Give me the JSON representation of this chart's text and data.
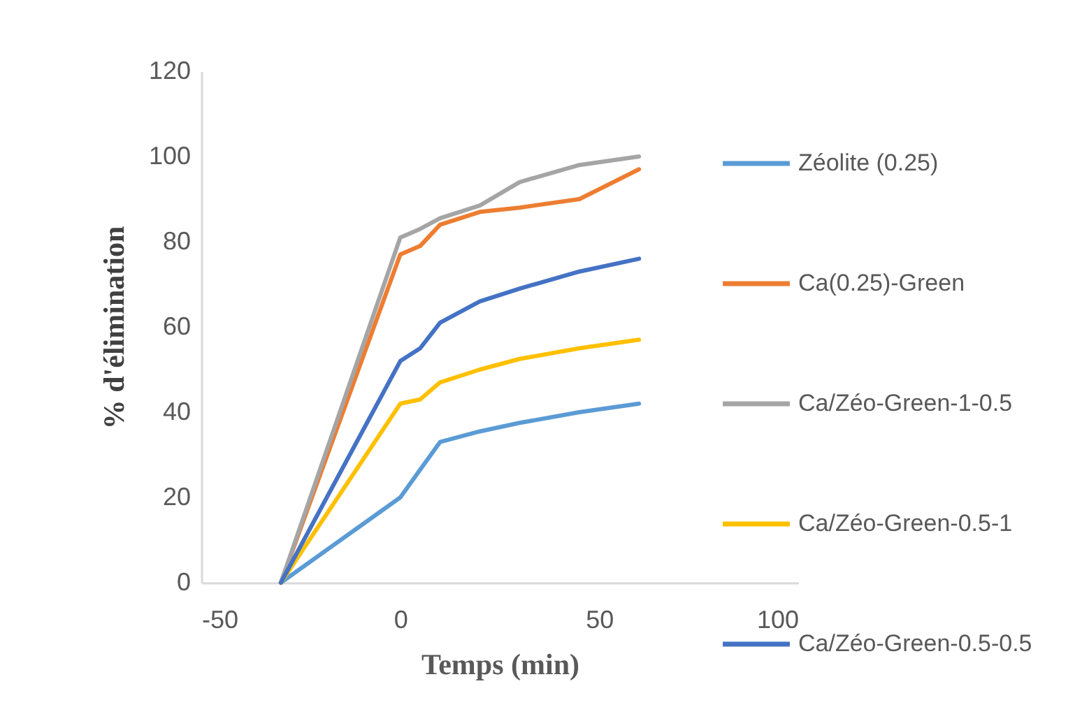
{
  "chart_data": {
    "type": "line",
    "xlabel": "Temps (min)",
    "ylabel": "% d'élimination",
    "x": [
      -30,
      0,
      5,
      10,
      20,
      30,
      45,
      60
    ],
    "series": [
      {
        "name": "Zéolite (0.25)",
        "color": "#5b9bd5",
        "values": [
          0,
          20,
          26.5,
          33,
          35.5,
          37.5,
          40,
          42
        ]
      },
      {
        "name": "Ca(0.25)-Green",
        "color": "#ed7d31",
        "values": [
          0,
          77,
          79,
          84,
          87,
          88,
          90,
          97
        ]
      },
      {
        "name": "Ca/Zéo-Green-1-0.5",
        "color": "#a5a5a5",
        "values": [
          0,
          81,
          83,
          85.5,
          88.5,
          94,
          98,
          100
        ]
      },
      {
        "name": "Ca/Zéo-Green-0.5-1",
        "color": "#ffc000",
        "values": [
          0,
          42,
          43,
          47,
          50,
          52.5,
          55,
          57
        ]
      },
      {
        "name": "Ca/Zéo-Green-0.5-0.5",
        "color": "#4472c4",
        "values": [
          0,
          52,
          55,
          61,
          66,
          69,
          73,
          76
        ]
      }
    ],
    "xlim": [
      -50,
      100
    ],
    "xticks": [
      -50,
      0,
      50,
      100
    ],
    "ylim": [
      0,
      120
    ],
    "yticks": [
      0,
      20,
      40,
      60,
      80,
      100,
      120
    ],
    "grid": false,
    "legend": "right",
    "marker": "none",
    "line_style": "solid"
  }
}
